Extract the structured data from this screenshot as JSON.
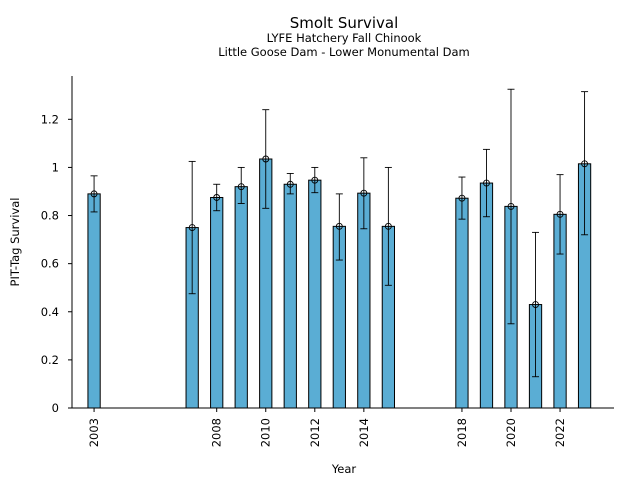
{
  "chart_data": {
    "type": "bar",
    "title": "Smolt Survival",
    "subtitle_1": "LYFE Hatchery Fall Chinook",
    "subtitle_2": "Little Goose Dam - Lower Monumental Dam",
    "xlabel": "Year",
    "ylabel": "PIT-Tag Survival",
    "ylim": [
      0,
      1.38
    ],
    "xlim": [
      2002.1,
      2024.2
    ],
    "yticks": [
      0,
      0.2,
      0.4,
      0.6,
      0.8,
      1,
      1.2
    ],
    "ytick_labels": [
      "0",
      "0.2",
      "0.4",
      "0.6",
      "0.8",
      "1",
      "1.2"
    ],
    "xticks": [
      2003,
      2008,
      2010,
      2012,
      2014,
      2018,
      2020,
      2022
    ],
    "xtick_labels": [
      "2003",
      "2008",
      "2010",
      "2012",
      "2014",
      "2018",
      "2020",
      "2022"
    ],
    "bar_color": "#5aadd4",
    "grid": false,
    "series": [
      {
        "x": [
          2003,
          2007,
          2008,
          2009,
          2010,
          2011,
          2012,
          2013,
          2014,
          2015,
          2018,
          2019,
          2020,
          2021,
          2022,
          2023
        ],
        "values": [
          0.89,
          0.75,
          0.875,
          0.92,
          1.035,
          0.93,
          0.947,
          0.755,
          0.893,
          0.755,
          0.872,
          0.935,
          0.838,
          0.43,
          0.805,
          1.015
        ],
        "lower": [
          0.815,
          0.475,
          0.82,
          0.85,
          0.83,
          0.89,
          0.895,
          0.615,
          0.745,
          0.51,
          0.785,
          0.795,
          0.35,
          0.13,
          0.64,
          0.72
        ],
        "upper": [
          0.965,
          1.025,
          0.93,
          1.0,
          1.24,
          0.975,
          1.0,
          0.89,
          1.04,
          1.0,
          0.96,
          1.075,
          1.325,
          0.73,
          0.97,
          1.315
        ]
      }
    ]
  }
}
